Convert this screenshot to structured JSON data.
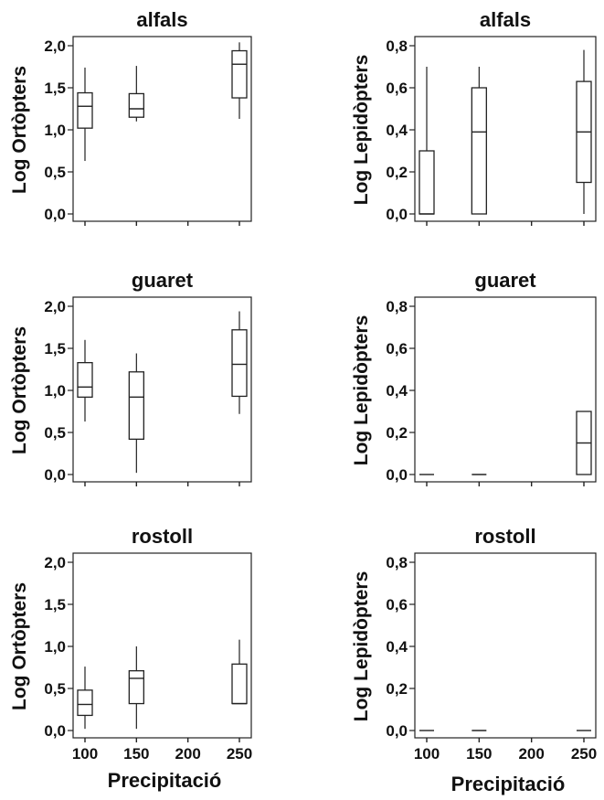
{
  "x_axis_label": "Precipitació",
  "chart_data": [
    {
      "type": "box",
      "title": "alfals",
      "ylabel": "Log Ortòpters",
      "xlabel": "",
      "xlim": [
        100,
        250
      ],
      "ylim": [
        0,
        2.0
      ],
      "yticks": [
        "0,0",
        "0,5",
        "1,0",
        "1,5",
        "2,0"
      ],
      "xticks": [],
      "boxes": [
        {
          "x": 100,
          "whisker_low": 0.63,
          "q1": 1.02,
          "median": 1.28,
          "q3": 1.44,
          "whisker_high": 1.74
        },
        {
          "x": 150,
          "whisker_low": 1.1,
          "q1": 1.15,
          "median": 1.25,
          "q3": 1.43,
          "whisker_high": 1.76
        },
        {
          "x": 250,
          "whisker_low": 1.13,
          "q1": 1.38,
          "median": 1.78,
          "q3": 1.94,
          "whisker_high": 2.04
        }
      ]
    },
    {
      "type": "box",
      "title": "alfals",
      "ylabel": "Log Lepidòpters",
      "xlabel": "",
      "xlim": [
        100,
        250
      ],
      "ylim": [
        0,
        0.8
      ],
      "yticks": [
        "0,0",
        "0,2",
        "0,4",
        "0,6",
        "0,8"
      ],
      "xticks": [],
      "boxes": [
        {
          "x": 100,
          "whisker_low": 0.0,
          "q1": 0.0,
          "median": 0.0,
          "q3": 0.3,
          "whisker_high": 0.7
        },
        {
          "x": 150,
          "whisker_low": 0.0,
          "q1": 0.0,
          "median": 0.39,
          "q3": 0.6,
          "whisker_high": 0.7
        },
        {
          "x": 250,
          "whisker_low": 0.0,
          "q1": 0.15,
          "median": 0.39,
          "q3": 0.63,
          "whisker_high": 0.78
        }
      ]
    },
    {
      "type": "box",
      "title": "guaret",
      "ylabel": "Log Ortòpters",
      "xlabel": "",
      "xlim": [
        100,
        250
      ],
      "ylim": [
        0,
        2.0
      ],
      "yticks": [
        "0,0",
        "0,5",
        "1,0",
        "1,5",
        "2,0"
      ],
      "xticks": [],
      "boxes": [
        {
          "x": 100,
          "whisker_low": 0.63,
          "q1": 0.92,
          "median": 1.04,
          "q3": 1.33,
          "whisker_high": 1.6
        },
        {
          "x": 150,
          "whisker_low": 0.02,
          "q1": 0.42,
          "median": 0.92,
          "q3": 1.22,
          "whisker_high": 1.44
        },
        {
          "x": 250,
          "whisker_low": 0.72,
          "q1": 0.93,
          "median": 1.31,
          "q3": 1.72,
          "whisker_high": 1.94
        }
      ]
    },
    {
      "type": "box",
      "title": "guaret",
      "ylabel": "Log Lepidòpters",
      "xlabel": "",
      "xlim": [
        100,
        250
      ],
      "ylim": [
        0,
        0.8
      ],
      "yticks": [
        "0,0",
        "0,2",
        "0,4",
        "0,6",
        "0,8"
      ],
      "xticks": [],
      "boxes": [
        {
          "x": 100,
          "whisker_low": 0.0,
          "q1": 0.0,
          "median": 0.0,
          "q3": 0.0,
          "whisker_high": 0.0
        },
        {
          "x": 150,
          "whisker_low": 0.0,
          "q1": 0.0,
          "median": 0.0,
          "q3": 0.0,
          "whisker_high": 0.0
        },
        {
          "x": 250,
          "whisker_low": 0.0,
          "q1": 0.0,
          "median": 0.15,
          "q3": 0.3,
          "whisker_high": 0.3
        }
      ]
    },
    {
      "type": "box",
      "title": "rostoll",
      "ylabel": "Log Ortòpters",
      "xlabel": "",
      "xlim": [
        100,
        250
      ],
      "ylim": [
        0,
        2.0
      ],
      "yticks": [
        "0,0",
        "0,5",
        "1,0",
        "1,5",
        "2,0"
      ],
      "xticks": [
        "100",
        "150",
        "200",
        "250"
      ],
      "boxes": [
        {
          "x": 100,
          "whisker_low": 0.02,
          "q1": 0.18,
          "median": 0.31,
          "q3": 0.48,
          "whisker_high": 0.76
        },
        {
          "x": 150,
          "whisker_low": 0.02,
          "q1": 0.32,
          "median": 0.62,
          "q3": 0.71,
          "whisker_high": 1.0
        },
        {
          "x": 250,
          "whisker_low": 0.32,
          "q1": 0.32,
          "median": 0.32,
          "q3": 0.79,
          "whisker_high": 1.08
        }
      ]
    },
    {
      "type": "box",
      "title": "rostoll",
      "ylabel": "Log Lepidòpters",
      "xlabel": "",
      "xlim": [
        100,
        250
      ],
      "ylim": [
        0,
        0.8
      ],
      "yticks": [
        "0,0",
        "0,2",
        "0,4",
        "0,6",
        "0,8"
      ],
      "xticks": [
        "100",
        "150",
        "200",
        "250"
      ],
      "boxes": [
        {
          "x": 100,
          "whisker_low": 0.0,
          "q1": 0.0,
          "median": 0.0,
          "q3": 0.0,
          "whisker_high": 0.0
        },
        {
          "x": 150,
          "whisker_low": 0.0,
          "q1": 0.0,
          "median": 0.0,
          "q3": 0.0,
          "whisker_high": 0.0
        },
        {
          "x": 250,
          "whisker_low": 0.0,
          "q1": 0.0,
          "median": 0.0,
          "q3": 0.0,
          "whisker_high": 0.0
        }
      ]
    }
  ]
}
